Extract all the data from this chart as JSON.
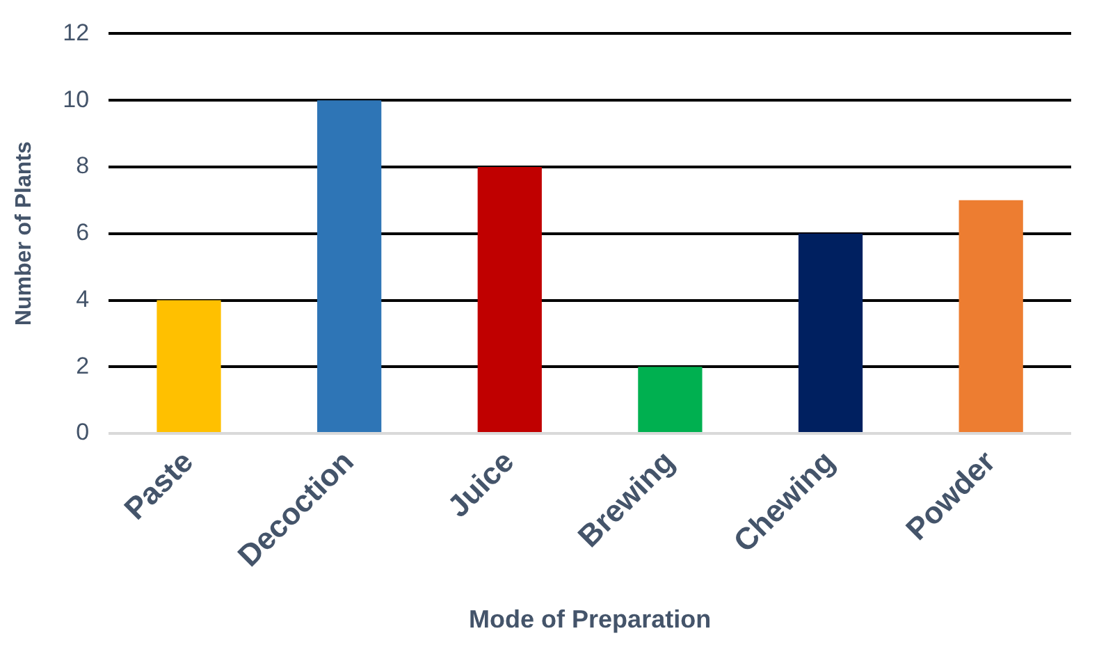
{
  "chart_data": {
    "type": "bar",
    "xlabel": "Mode of Preparation",
    "ylabel": "Number of Plants",
    "categories": [
      "Paste",
      "Decoction",
      "Juice",
      "Brewing",
      "Chewing",
      "Powder"
    ],
    "values": [
      4,
      10,
      8,
      2,
      6,
      7
    ],
    "colors": [
      "#ffc000",
      "#2e75b6",
      "#c00000",
      "#00b050",
      "#002060",
      "#ed7d31"
    ],
    "ylim": [
      0,
      12
    ],
    "yticks": [
      0,
      2,
      4,
      6,
      8,
      10,
      12
    ],
    "grid": "y",
    "legend": false
  }
}
